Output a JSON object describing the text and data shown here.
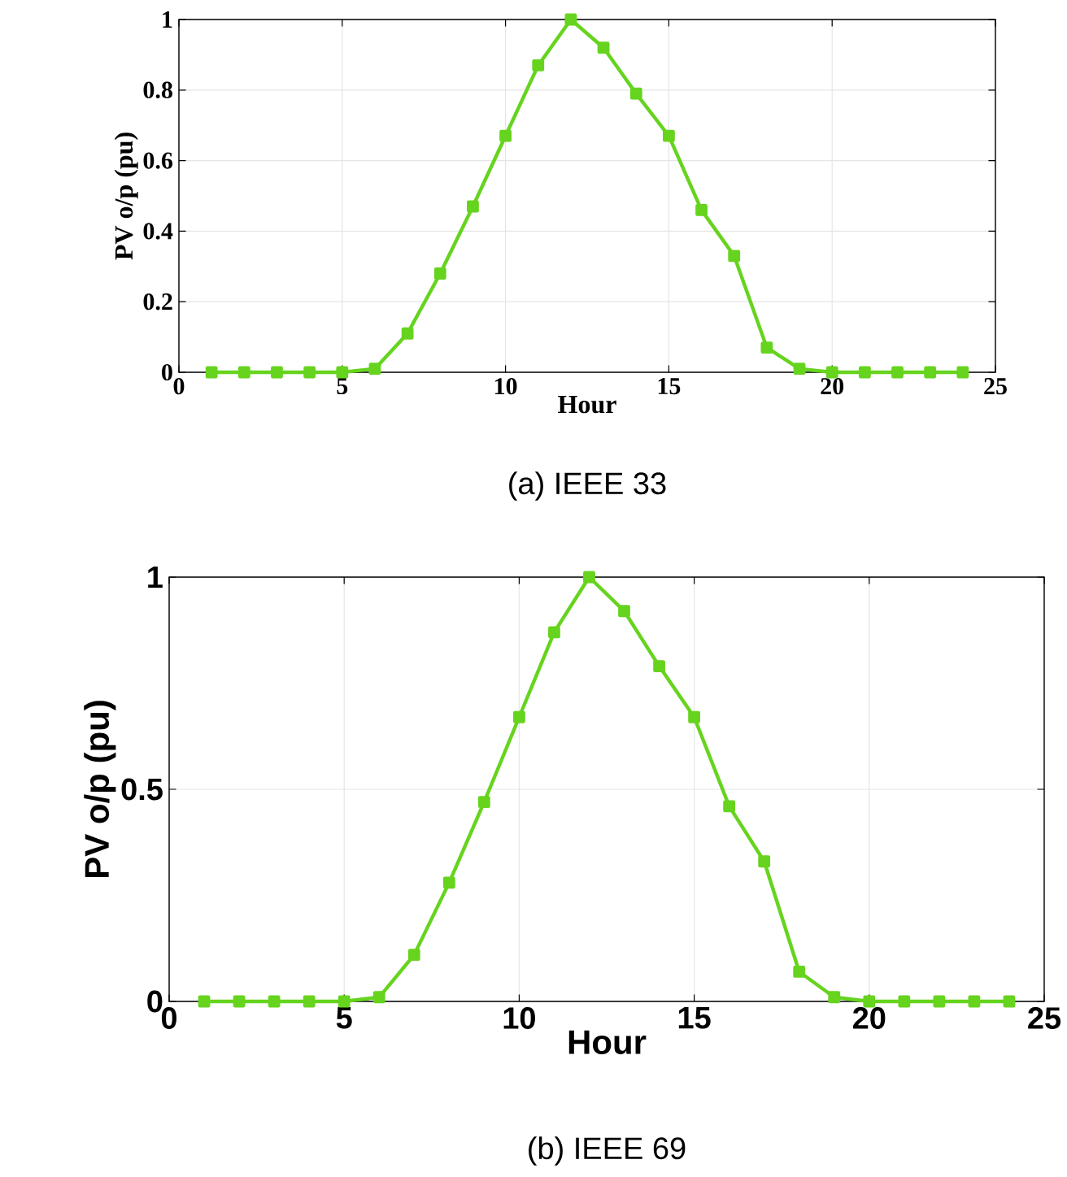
{
  "chart_data": [
    {
      "type": "line",
      "xlabel": "Hour",
      "ylabel": "PV o/p (pu)",
      "annotations": [
        "(a) IEEE 33"
      ],
      "x": [
        1,
        2,
        3,
        4,
        5,
        6,
        7,
        8,
        9,
        10,
        11,
        12,
        13,
        14,
        15,
        16,
        17,
        18,
        19,
        20,
        21,
        22,
        23,
        24
      ],
      "series": [
        {
          "color": "#66d41e",
          "values": [
            0,
            0,
            0,
            0,
            0,
            0.01,
            0.11,
            0.28,
            0.47,
            0.67,
            0.87,
            1,
            0.92,
            0.79,
            0.67,
            0.46,
            0.33,
            0.07,
            0.01,
            0,
            0,
            0,
            0,
            0
          ]
        }
      ],
      "xlim": [
        0,
        25
      ],
      "ylim": [
        0,
        1
      ],
      "xticks": [
        0,
        5,
        10,
        15,
        20,
        25
      ],
      "yticks": [
        0,
        0.2,
        0.4,
        0.6,
        0.8,
        1
      ],
      "grid": true,
      "marker": "square",
      "line_style": "solid"
    },
    {
      "type": "line",
      "xlabel": "Hour",
      "ylabel": "PV o/p (pu)",
      "annotations": [
        "(b) IEEE 69"
      ],
      "x": [
        1,
        2,
        3,
        4,
        5,
        6,
        7,
        8,
        9,
        10,
        11,
        12,
        13,
        14,
        15,
        16,
        17,
        18,
        19,
        20,
        21,
        22,
        23,
        24
      ],
      "series": [
        {
          "color": "#66d41e",
          "values": [
            0,
            0,
            0,
            0,
            0,
            0.01,
            0.11,
            0.28,
            0.47,
            0.67,
            0.87,
            1,
            0.92,
            0.79,
            0.67,
            0.46,
            0.33,
            0.07,
            0.01,
            0,
            0,
            0,
            0,
            0
          ]
        }
      ],
      "xlim": [
        0,
        25
      ],
      "ylim": [
        0,
        1
      ],
      "xticks": [
        0,
        5,
        10,
        15,
        20,
        25
      ],
      "yticks": [
        0,
        0.5,
        1
      ],
      "grid": true,
      "marker": "square",
      "line_style": "solid"
    }
  ]
}
